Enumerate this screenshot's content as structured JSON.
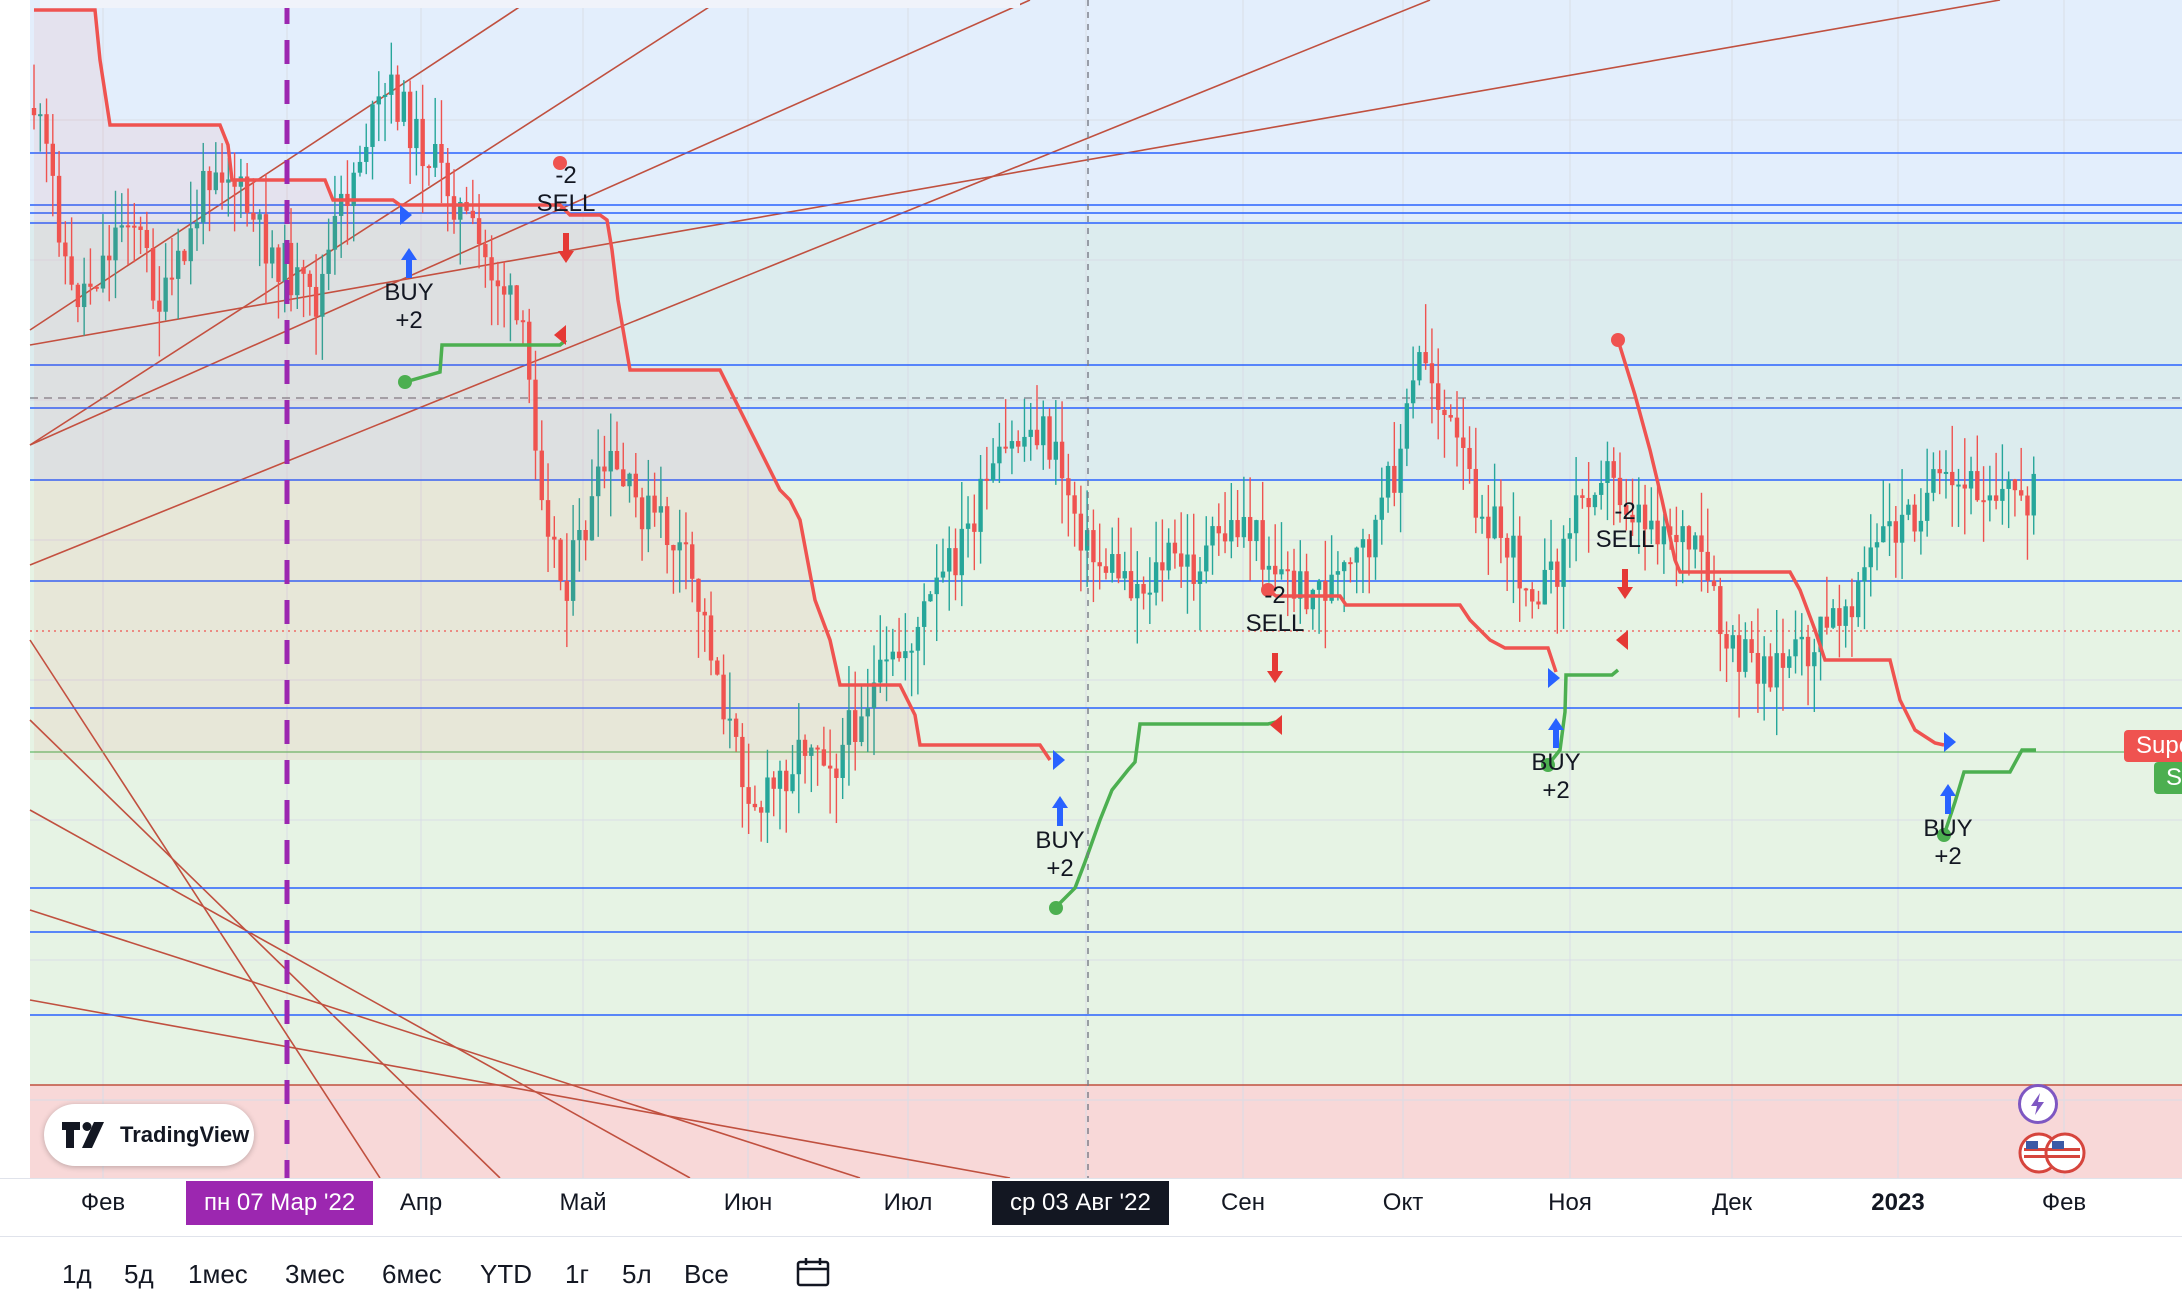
{
  "chart_data": {
    "type": "candlestick",
    "title": "",
    "xlabel": "",
    "ylabel": "",
    "x_ticks": [
      {
        "label": "Фев",
        "bold": false
      },
      {
        "label": "Мар",
        "bold": false
      },
      {
        "label": "Апр",
        "bold": false
      },
      {
        "label": "Май",
        "bold": false
      },
      {
        "label": "Июн",
        "bold": false
      },
      {
        "label": "Июл",
        "bold": false
      },
      {
        "label": "Авг",
        "bold": false
      },
      {
        "label": "Сен",
        "bold": false
      },
      {
        "label": "Окт",
        "bold": false
      },
      {
        "label": "Ноя",
        "bold": false
      },
      {
        "label": "Дек",
        "bold": false
      },
      {
        "label": "2023",
        "bold": true
      },
      {
        "label": "Фев",
        "bold": false
      }
    ],
    "crosshair_labels": [
      "пн 07 Мар '22",
      "ср 03 Авг '22"
    ],
    "price_path_relative": [
      [
        0,
        0.05
      ],
      [
        0.3,
        0.13
      ],
      [
        0.6,
        0.25
      ],
      [
        1.0,
        0.22
      ],
      [
        1.5,
        0.15
      ],
      [
        2.0,
        0.26
      ],
      [
        2.4,
        0.2
      ],
      [
        2.8,
        0.1
      ],
      [
        3.1,
        0.12
      ],
      [
        3.5,
        0.18
      ],
      [
        4.0,
        0.22
      ],
      [
        4.4,
        0.26
      ],
      [
        4.8,
        0.16
      ],
      [
        5.2,
        0.08
      ],
      [
        5.6,
        0.03
      ],
      [
        6.0,
        0.08
      ],
      [
        6.5,
        0.13
      ],
      [
        7.0,
        0.2
      ],
      [
        7.4,
        0.24
      ],
      [
        7.7,
        0.3
      ],
      [
        8.0,
        0.45
      ],
      [
        8.3,
        0.55
      ],
      [
        8.6,
        0.5
      ],
      [
        9.0,
        0.42
      ],
      [
        9.4,
        0.46
      ],
      [
        9.8,
        0.48
      ],
      [
        10.2,
        0.52
      ],
      [
        10.6,
        0.6
      ],
      [
        11.0,
        0.72
      ],
      [
        11.4,
        0.78
      ],
      [
        11.8,
        0.74
      ],
      [
        12.2,
        0.7
      ],
      [
        12.6,
        0.73
      ],
      [
        13.0,
        0.67
      ],
      [
        13.4,
        0.64
      ],
      [
        13.8,
        0.6
      ],
      [
        14.2,
        0.55
      ],
      [
        14.6,
        0.5
      ],
      [
        15.0,
        0.44
      ],
      [
        15.4,
        0.4
      ],
      [
        15.8,
        0.38
      ],
      [
        16.2,
        0.44
      ],
      [
        16.6,
        0.52
      ],
      [
        17.0,
        0.53
      ],
      [
        17.4,
        0.55
      ],
      [
        17.8,
        0.52
      ],
      [
        18.2,
        0.53
      ],
      [
        18.6,
        0.5
      ],
      [
        19.0,
        0.48
      ],
      [
        19.4,
        0.52
      ],
      [
        19.8,
        0.55
      ],
      [
        20.2,
        0.55
      ],
      [
        20.6,
        0.54
      ],
      [
        21.0,
        0.5
      ],
      [
        21.4,
        0.42
      ],
      [
        21.8,
        0.3
      ],
      [
        22.2,
        0.38
      ],
      [
        22.6,
        0.45
      ],
      [
        23.0,
        0.49
      ],
      [
        23.4,
        0.54
      ],
      [
        23.8,
        0.55
      ],
      [
        24.2,
        0.47
      ],
      [
        24.6,
        0.42
      ],
      [
        25.0,
        0.46
      ],
      [
        25.4,
        0.48
      ],
      [
        25.8,
        0.49
      ],
      [
        26.2,
        0.53
      ],
      [
        26.6,
        0.62
      ],
      [
        27.0,
        0.63
      ],
      [
        27.4,
        0.63
      ],
      [
        27.8,
        0.62
      ],
      [
        28.2,
        0.59
      ],
      [
        28.6,
        0.55
      ],
      [
        29.0,
        0.5
      ],
      [
        29.4,
        0.48
      ],
      [
        29.8,
        0.45
      ],
      [
        30.2,
        0.45
      ],
      [
        30.6,
        0.44
      ],
      [
        31.0,
        0.45
      ],
      [
        31.4,
        0.45
      ]
    ],
    "signals": [
      {
        "type": "buy",
        "label": "BUY",
        "delta": "+2"
      },
      {
        "type": "sell",
        "label": "SELL",
        "delta": "-2"
      },
      {
        "type": "buy",
        "label": "BUY",
        "delta": "+2"
      },
      {
        "type": "sell",
        "label": "SELL",
        "delta": "-2"
      },
      {
        "type": "buy",
        "label": "BUY",
        "delta": "+2"
      },
      {
        "type": "sell",
        "label": "SELL",
        "delta": "-2"
      },
      {
        "type": "buy",
        "label": "BUY",
        "delta": "+2"
      }
    ],
    "price_label_texts": [
      "Supe",
      "S"
    ],
    "grid": true
  },
  "colors": {
    "up": "#26a69a",
    "down": "#ef5350",
    "supertrend_up": "#4caf50",
    "supertrend_down": "#ef5350",
    "level_line": "#2962ff",
    "channel_line": "#c0503f",
    "marker_line": "#9c27b0",
    "zone_blue": "#e3eefc",
    "zone_teal": "#dcecee",
    "zone_green": "#e6f3e4",
    "zone_red": "#f8d8d8"
  },
  "toolbar": {
    "ranges": [
      "1д",
      "5д",
      "1мес",
      "3мес",
      "6мес",
      "YTD",
      "1г",
      "5л",
      "Все"
    ],
    "calendar_icon": "calendar-icon"
  },
  "logo": {
    "text": "TradingView"
  }
}
